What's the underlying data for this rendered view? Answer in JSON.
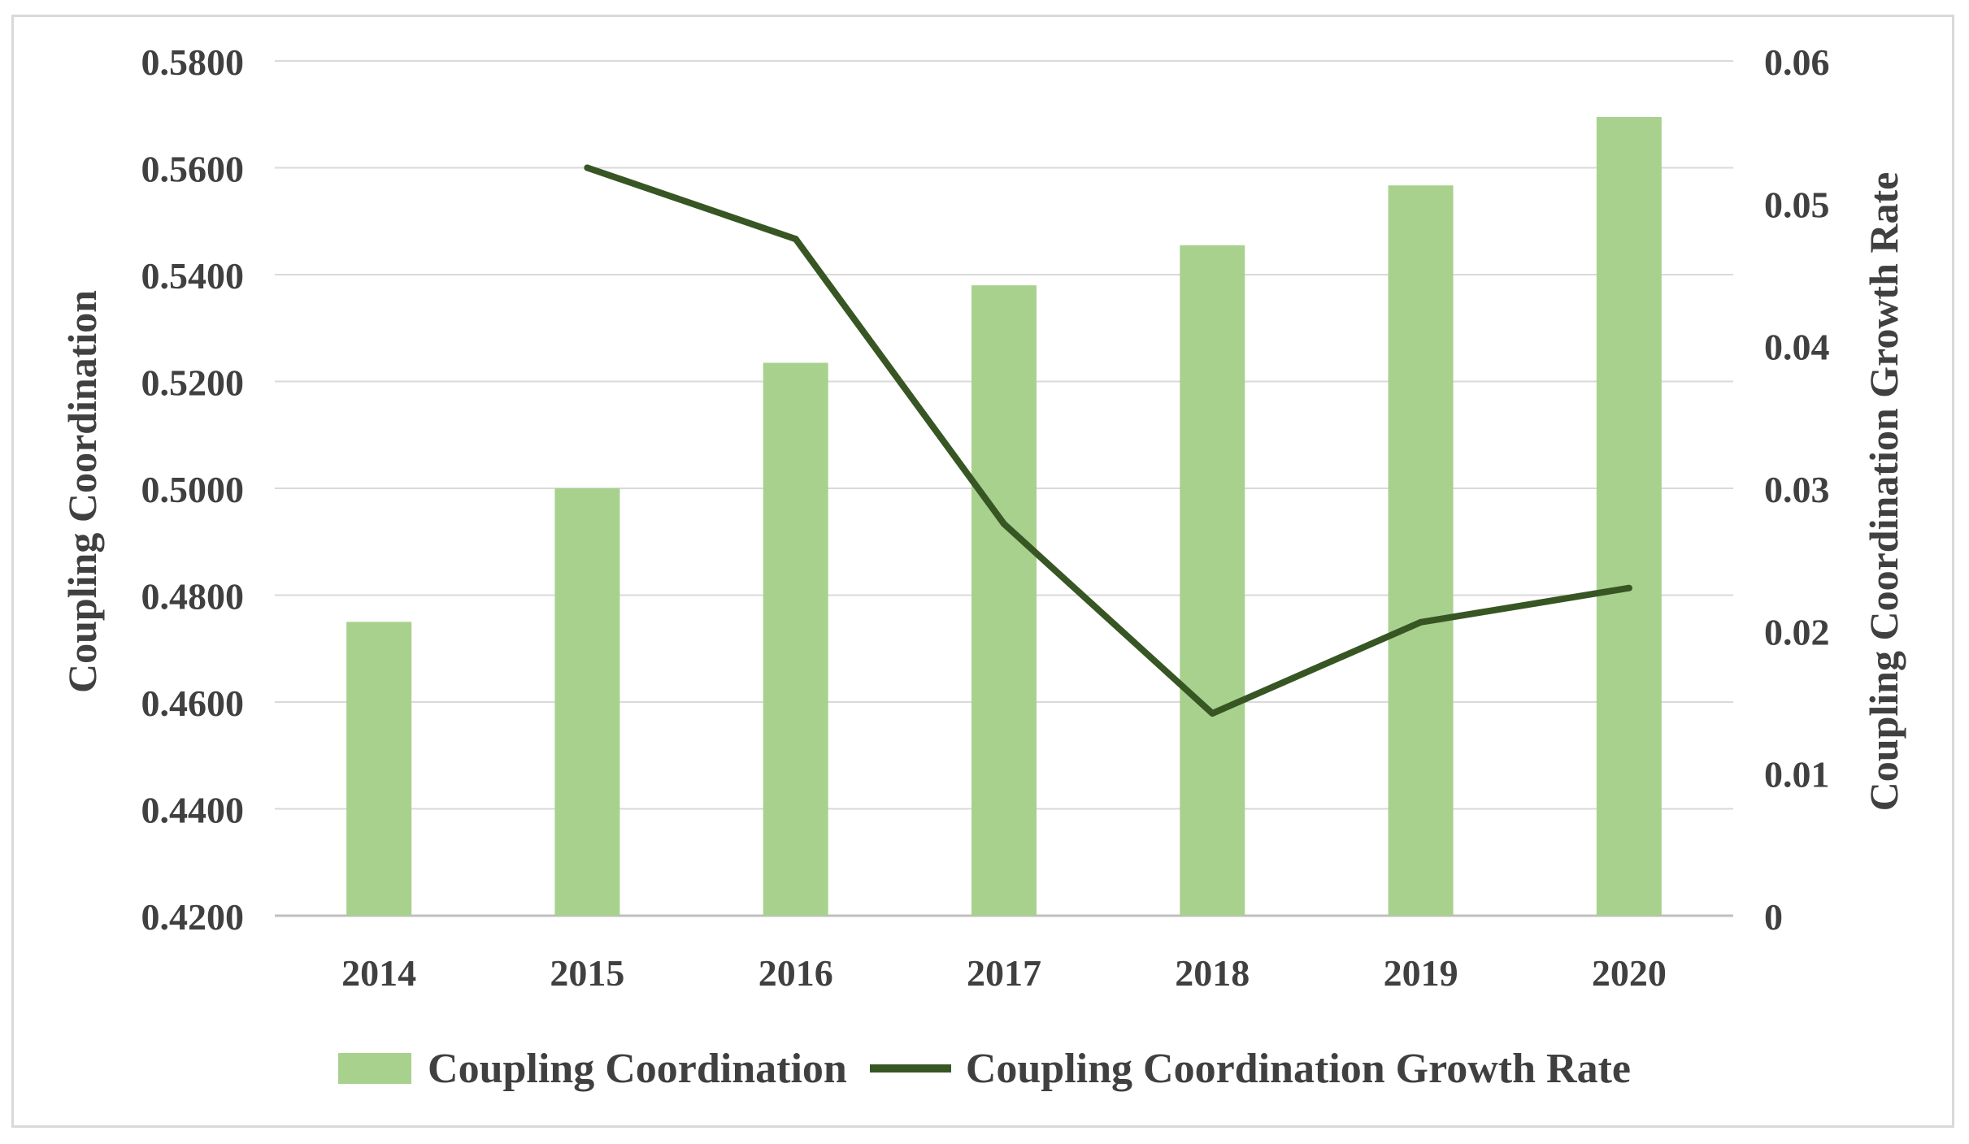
{
  "chart_data": {
    "type": "bar",
    "categories": [
      "2014",
      "2015",
      "2016",
      "2017",
      "2018",
      "2019",
      "2020"
    ],
    "series": [
      {
        "name": "Coupling Coordination",
        "kind": "bar",
        "axis": "left",
        "color": "#a9d18e",
        "values": [
          0.475,
          0.5,
          0.5235,
          0.538,
          0.5455,
          0.5567,
          0.5695
        ]
      },
      {
        "name": "Coupling Coordination Growth Rate",
        "kind": "line",
        "axis": "right",
        "color": "#375623",
        "values": [
          null,
          0.0525,
          0.0475,
          0.0275,
          0.0142,
          0.0206,
          0.023
        ]
      }
    ],
    "ylabel": "Coupling Coordination",
    "y2label": "Coupling Coordination Growth Rate",
    "ylim": [
      0.42,
      0.58
    ],
    "y2lim": [
      0,
      0.06
    ],
    "yticks": [
      "0.4200",
      "0.4400",
      "0.4600",
      "0.4800",
      "0.5000",
      "0.5200",
      "0.5400",
      "0.5600",
      "0.5800"
    ],
    "y2ticks": [
      "0",
      "0.01",
      "0.02",
      "0.03",
      "0.04",
      "0.05",
      "0.06"
    ],
    "grid": true,
    "legend": "bottom"
  }
}
